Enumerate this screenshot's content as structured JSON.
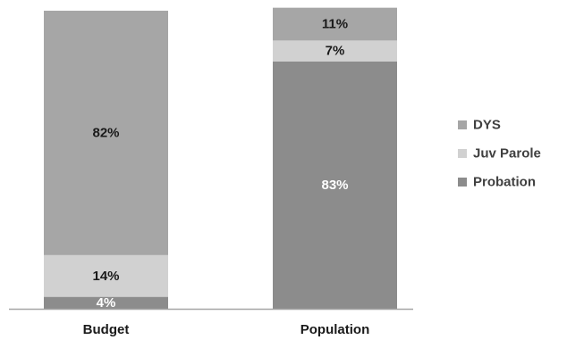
{
  "chart_data": {
    "type": "stacked-bar-100",
    "categories": [
      "Budget",
      "Population"
    ],
    "series": [
      {
        "name": "Probation",
        "color": "#8c8c8c",
        "label_color": "#ffffff",
        "values": [
          4,
          83
        ],
        "labels": [
          "4%",
          "83%"
        ]
      },
      {
        "name": "Juv Parole",
        "color": "#d1d1d1",
        "label_color": "#1a1a1a",
        "values": [
          14,
          7
        ],
        "labels": [
          "14%",
          "7%"
        ]
      },
      {
        "name": "DYS",
        "color": "#a6a6a6",
        "label_color": "#1a1a1a",
        "values": [
          82,
          11
        ],
        "labels": [
          "82%",
          "11%"
        ]
      }
    ],
    "legend": {
      "placement": "right",
      "order": [
        "DYS",
        "Juv Parole",
        "Probation"
      ]
    },
    "ylim": [
      0,
      100
    ],
    "grid": false,
    "axis_color": "#a6a6a6"
  }
}
